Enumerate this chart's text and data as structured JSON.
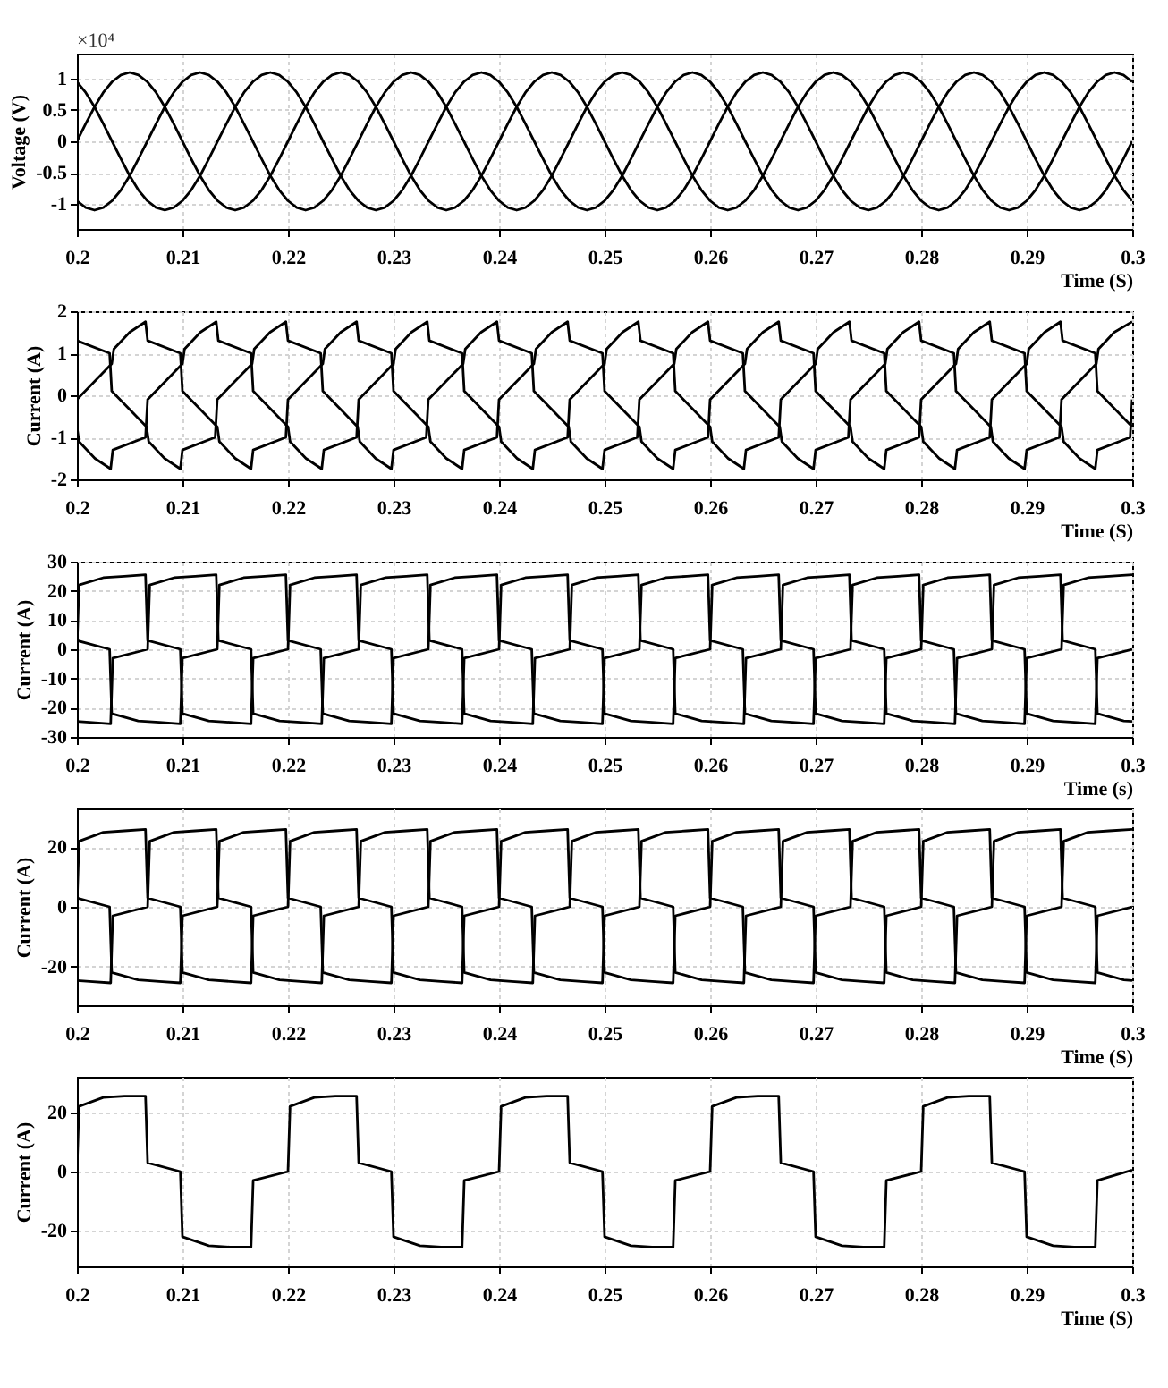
{
  "chart_data": [
    {
      "type": "line",
      "ylabel": "Voltage (V)",
      "xlabel": "Time (S)",
      "annotations": [
        "×10⁴"
      ],
      "xlim": [
        0.2,
        0.3
      ],
      "xticks": [
        0.2,
        0.21,
        0.22,
        0.23,
        0.24,
        0.25,
        0.26,
        0.27,
        0.28,
        0.29,
        0.3
      ],
      "ylim": [
        -1.4,
        1.4
      ],
      "yticks": [
        -1,
        -0.5,
        0,
        0.5,
        1
      ],
      "grid": true,
      "x": [
        0.2,
        0.20083,
        0.20167,
        0.2025,
        0.20333,
        0.20417,
        0.205,
        0.20583,
        0.20667,
        0.2075,
        0.20833,
        0.20917,
        0.21,
        0.21083,
        0.21167,
        0.2125,
        0.21333,
        0.21417,
        0.215,
        0.21583,
        0.21667,
        0.2175,
        0.21833,
        0.21917,
        0.22,
        0.22083,
        0.22167,
        0.2225,
        0.22333,
        0.22417,
        0.225,
        0.22583,
        0.22667,
        0.2275,
        0.22833,
        0.22917,
        0.23,
        0.23083,
        0.23167,
        0.2325,
        0.23333,
        0.23417,
        0.235,
        0.23583,
        0.23667,
        0.2375,
        0.23833,
        0.23917,
        0.24,
        0.24083,
        0.24167,
        0.2425,
        0.24333,
        0.24417,
        0.245,
        0.24583,
        0.24667,
        0.2475,
        0.24833,
        0.24917,
        0.25,
        0.25083,
        0.25167,
        0.2525,
        0.25333,
        0.25417,
        0.255,
        0.25583,
        0.25667,
        0.2575,
        0.25833,
        0.25917,
        0.26,
        0.26083,
        0.26167,
        0.2625,
        0.26333,
        0.26417,
        0.265,
        0.26583,
        0.26667,
        0.2675,
        0.26833,
        0.26917,
        0.27,
        0.27083,
        0.27167,
        0.2725,
        0.27333,
        0.27417,
        0.275,
        0.27583,
        0.27667,
        0.2775,
        0.27833,
        0.27917,
        0.28,
        0.28083,
        0.28167,
        0.2825,
        0.28333,
        0.28417,
        0.285,
        0.28583,
        0.28667,
        0.2875,
        0.28833,
        0.28917,
        0.29,
        0.29083,
        0.29167,
        0.2925,
        0.29333,
        0.29417,
        0.295,
        0.29583,
        0.29667,
        0.2975,
        0.29833,
        0.29917,
        0.3
      ],
      "series": [
        {
          "color": "#000000",
          "values": [
            0,
            0.28,
            0.55,
            0.78,
            0.95,
            1.06,
            1.1,
            1.06,
            0.95,
            0.78,
            0.55,
            0.28,
            0,
            -0.28,
            -0.55,
            -0.78,
            -0.95,
            -1.06,
            -1.1,
            -1.06,
            -0.95,
            -0.78,
            -0.55,
            -0.28,
            0,
            0.28,
            0.55,
            0.78,
            0.95,
            1.06,
            1.1,
            1.06,
            0.95,
            0.78,
            0.55,
            0.28,
            0,
            -0.28,
            -0.55,
            -0.78,
            -0.95,
            -1.06,
            -1.1,
            -1.06,
            -0.95,
            -0.78,
            -0.55,
            -0.28,
            0,
            0.28,
            0.55,
            0.78,
            0.95,
            1.06,
            1.1,
            1.06,
            0.95,
            0.78,
            0.55,
            0.28,
            0,
            -0.28,
            -0.55,
            -0.78,
            -0.95,
            -1.06,
            -1.1,
            -1.06,
            -0.95,
            -0.78,
            -0.55,
            -0.28,
            0,
            0.28,
            0.55,
            0.78,
            0.95,
            1.06,
            1.1,
            1.06,
            0.95,
            0.78,
            0.55,
            0.28,
            0,
            -0.28,
            -0.55,
            -0.78,
            -0.95,
            -1.06,
            -1.1,
            -1.06,
            -0.95,
            -0.78,
            -0.55,
            -0.28,
            0,
            0.28,
            0.55,
            0.78,
            0.95,
            1.06,
            1.1,
            1.06,
            0.95,
            0.78,
            0.55,
            0.28,
            0,
            -0.28,
            -0.55,
            -0.78,
            -0.95,
            -1.06,
            -1.1,
            -1.06,
            -0.95,
            -0.78,
            -0.55,
            -0.28,
            0
          ]
        },
        {
          "color": "#000000",
          "values": [
            -0.95,
            -1.06,
            -1.1,
            -1.06,
            -0.95,
            -0.78,
            -0.55,
            -0.28,
            0,
            0.28,
            0.55,
            0.78,
            0.95,
            1.06,
            1.1,
            1.06,
            0.95,
            0.78,
            0.55,
            0.28,
            0,
            -0.28,
            -0.55,
            -0.78,
            -0.95,
            -1.06,
            -1.1,
            -1.06,
            -0.95,
            -0.78,
            -0.55,
            -0.28,
            0,
            0.28,
            0.55,
            0.78,
            0.95,
            1.06,
            1.1,
            1.06,
            0.95,
            0.78,
            0.55,
            0.28,
            0,
            -0.28,
            -0.55,
            -0.78,
            -0.95,
            -1.06,
            -1.1,
            -1.06,
            -0.95,
            -0.78,
            -0.55,
            -0.28,
            0,
            0.28,
            0.55,
            0.78,
            0.95,
            1.06,
            1.1,
            1.06,
            0.95,
            0.78,
            0.55,
            0.28,
            0,
            -0.28,
            -0.55,
            -0.78,
            -0.95,
            -1.06,
            -1.1,
            -1.06,
            -0.95,
            -0.78,
            -0.55,
            -0.28,
            0,
            0.28,
            0.55,
            0.78,
            0.95,
            1.06,
            1.1,
            1.06,
            0.95,
            0.78,
            0.55,
            0.28,
            0,
            -0.28,
            -0.55,
            -0.78,
            -0.95,
            -1.06,
            -1.1,
            -1.06,
            -0.95,
            -0.78,
            -0.55,
            -0.28,
            0,
            0.28,
            0.55,
            0.78,
            0.95,
            1.06,
            1.1,
            1.06,
            0.95,
            0.78,
            0.55,
            0.28,
            0,
            -0.28,
            -0.55,
            -0.78,
            -0.95
          ]
        },
        {
          "color": "#000000",
          "values": [
            0.95,
            0.78,
            0.55,
            0.28,
            0,
            -0.28,
            -0.55,
            -0.78,
            -0.95,
            -1.06,
            -1.1,
            -1.06,
            -0.95,
            -0.78,
            -0.55,
            -0.28,
            0,
            0.28,
            0.55,
            0.78,
            0.95,
            1.06,
            1.1,
            1.06,
            0.95,
            0.78,
            0.55,
            0.28,
            0,
            -0.28,
            -0.55,
            -0.78,
            -0.95,
            -1.06,
            -1.1,
            -1.06,
            -0.95,
            -0.78,
            -0.55,
            -0.28,
            0,
            0.28,
            0.55,
            0.78,
            0.95,
            1.06,
            1.1,
            1.06,
            0.95,
            0.78,
            0.55,
            0.28,
            0,
            -0.28,
            -0.55,
            -0.78,
            -0.95,
            -1.06,
            -1.1,
            -1.06,
            -0.95,
            -0.78,
            -0.55,
            -0.28,
            0,
            0.28,
            0.55,
            0.78,
            0.95,
            1.06,
            1.1,
            1.06,
            0.95,
            0.78,
            0.55,
            0.28,
            0,
            -0.28,
            -0.55,
            -0.78,
            -0.95,
            -1.06,
            -1.1,
            -1.06,
            -0.95,
            -0.78,
            -0.55,
            -0.28,
            0,
            0.28,
            0.55,
            0.78,
            0.95,
            1.06,
            1.1,
            1.06,
            0.95,
            0.78,
            0.55,
            0.28,
            0,
            -0.28,
            -0.55,
            -0.78,
            -0.95,
            -1.06,
            -1.1,
            -1.06,
            -0.95,
            -0.78,
            -0.55,
            -0.28,
            0,
            0.28,
            0.55,
            0.78,
            0.95,
            1.06,
            1.1,
            1.06,
            0.95
          ]
        }
      ]
    },
    {
      "type": "line",
      "ylabel": "Current (A)",
      "xlabel": "Time (S)",
      "xlim": [
        0.2,
        0.3
      ],
      "xticks": [
        0.2,
        0.21,
        0.22,
        0.23,
        0.24,
        0.25,
        0.26,
        0.27,
        0.28,
        0.29,
        0.3
      ],
      "ylim": [
        -2,
        2
      ],
      "yticks": [
        -2,
        -1,
        0,
        1,
        2
      ],
      "grid": true,
      "series": [
        {
          "color": "#000000",
          "x": [
            0.2,
            0.2033,
            0.2035,
            0.205,
            0.2065,
            0.2067,
            0.2098,
            0.21,
            0.2133,
            0.2135,
            0.215,
            0.2165,
            0.2167,
            0.2198,
            0.22,
            0.2233,
            0.2235,
            0.225,
            0.2265,
            0.2267,
            0.2298,
            0.23,
            0.2333,
            0.2335,
            0.235,
            0.2365,
            0.2367,
            0.2398,
            0.24,
            0.2433,
            0.2435,
            0.245,
            0.2465,
            0.2467,
            0.2498,
            0.25,
            0.2533,
            0.2535,
            0.255,
            0.2565,
            0.2567,
            0.2598,
            0.26,
            0.2633,
            0.2635,
            0.265,
            0.2665,
            0.2667,
            0.2698,
            0.27,
            0.2733,
            0.2735,
            0.275,
            0.2765,
            0.2767,
            0.2798,
            0.28,
            0.2833,
            0.2835,
            0.285,
            0.2865,
            0.2867,
            0.2898,
            0.29,
            0.2933,
            0.2935,
            0.295,
            0.2965,
            0.2967,
            0.2998,
            0.3
          ],
          "values": [
            -0.1,
            0.75,
            1.1,
            1.5,
            1.75,
            1.3,
            1.0,
            0.1,
            -0.75,
            -1.1,
            -1.5,
            -1.75,
            -1.3,
            -1.0,
            -0.1,
            0.75,
            1.1,
            1.5,
            1.75,
            1.3,
            1.0,
            0.1,
            -0.75,
            -1.1,
            -1.5,
            -1.75,
            -1.3,
            -1.0,
            -0.1,
            0.75,
            1.1,
            1.5,
            1.75,
            1.3,
            1.0,
            0.1,
            -0.75,
            -1.1,
            -1.5,
            -1.75,
            -1.3,
            -1.0,
            -0.1,
            0.75,
            1.1,
            1.5,
            1.75,
            1.3,
            1.0,
            0.1,
            -0.75,
            -1.1,
            -1.5,
            -1.75,
            -1.3,
            -1.0,
            -0.1,
            0.75,
            1.1,
            1.5,
            1.75,
            1.3,
            1.0,
            0.1,
            -0.75,
            -1.1,
            -1.5,
            -1.75,
            -1.3,
            -1.0,
            -0.1
          ]
        },
        {
          "color": "#000000",
          "x": [
            0.2,
            0.2002,
            0.2017,
            0.2032,
            0.2034,
            0.2065,
            0.2067,
            0.21,
            0.2102,
            0.2117,
            0.2132,
            0.2134,
            0.2165,
            0.2167,
            0.22,
            0.2202,
            0.2217,
            0.2232,
            0.2234,
            0.2265,
            0.2267,
            0.23,
            0.2302,
            0.2317,
            0.2332,
            0.2334,
            0.2365,
            0.2367,
            0.24,
            0.2402,
            0.2417,
            0.2432,
            0.2434,
            0.2465,
            0.2467,
            0.25,
            0.2502,
            0.2517,
            0.2532,
            0.2534,
            0.2565,
            0.2567,
            0.26,
            0.2602,
            0.2617,
            0.2632,
            0.2634,
            0.2665,
            0.2667,
            0.27,
            0.2702,
            0.2717,
            0.2732,
            0.2734,
            0.2765,
            0.2767,
            0.28,
            0.2802,
            0.2817,
            0.2832,
            0.2834,
            0.2865,
            0.2867,
            0.29,
            0.2902,
            0.2917,
            0.2932,
            0.2934,
            0.2965,
            0.2967,
            0.3
          ],
          "values": [
            -0.75,
            -1.1,
            -1.5,
            -1.75,
            -1.3,
            -1.0,
            -0.1,
            0.75,
            1.1,
            1.5,
            1.75,
            1.3,
            1.0,
            0.1,
            -0.75,
            -1.1,
            -1.5,
            -1.75,
            -1.3,
            -1.0,
            -0.1,
            0.75,
            1.1,
            1.5,
            1.75,
            1.3,
            1.0,
            0.1,
            -0.75,
            -1.1,
            -1.5,
            -1.75,
            -1.3,
            -1.0,
            -0.1,
            0.75,
            1.1,
            1.5,
            1.75,
            1.3,
            1.0,
            0.1,
            -0.75,
            -1.1,
            -1.5,
            -1.75,
            -1.3,
            -1.0,
            -0.1,
            0.75,
            1.1,
            1.5,
            1.75,
            1.3,
            1.0,
            0.1,
            -0.75,
            -1.1,
            -1.5,
            -1.75,
            -1.3,
            -1.0,
            -0.1,
            0.75,
            1.1,
            1.5,
            1.75,
            1.3,
            1.0,
            0.1,
            -0.75
          ]
        },
        {
          "color": "#000000",
          "x": [
            0.2,
            0.2031,
            0.2033,
            0.2066,
            0.2068,
            0.2083,
            0.2098,
            0.21,
            0.2131,
            0.2133,
            0.2166,
            0.2168,
            0.2183,
            0.2198,
            0.22,
            0.2231,
            0.2233,
            0.2266,
            0.2268,
            0.2283,
            0.2298,
            0.23,
            0.2331,
            0.2333,
            0.2366,
            0.2368,
            0.2383,
            0.2398,
            0.24,
            0.2431,
            0.2433,
            0.2466,
            0.2468,
            0.2483,
            0.2498,
            0.25,
            0.2531,
            0.2533,
            0.2566,
            0.2568,
            0.2583,
            0.2598,
            0.26,
            0.2631,
            0.2633,
            0.2666,
            0.2668,
            0.2683,
            0.2698,
            0.27,
            0.2731,
            0.2733,
            0.2766,
            0.2768,
            0.2783,
            0.2798,
            0.28,
            0.2831,
            0.2833,
            0.2866,
            0.2868,
            0.2883,
            0.2898,
            0.29,
            0.2931,
            0.2933,
            0.2966,
            0.2968,
            0.2983,
            0.3
          ],
          "values": [
            1.3,
            1.0,
            0.1,
            -0.75,
            -1.1,
            -1.5,
            -1.75,
            -1.3,
            -1.0,
            -0.1,
            0.75,
            1.1,
            1.5,
            1.75,
            1.3,
            1.0,
            0.1,
            -0.75,
            -1.1,
            -1.5,
            -1.75,
            -1.3,
            -1.0,
            -0.1,
            0.75,
            1.1,
            1.5,
            1.75,
            1.3,
            1.0,
            0.1,
            -0.75,
            -1.1,
            -1.5,
            -1.75,
            -1.3,
            -1.0,
            -0.1,
            0.75,
            1.1,
            1.5,
            1.75,
            1.3,
            1.0,
            0.1,
            -0.75,
            -1.1,
            -1.5,
            -1.75,
            -1.3,
            -1.0,
            -0.1,
            0.75,
            1.1,
            1.5,
            1.75,
            1.3,
            1.0,
            0.1,
            -0.75,
            -1.1,
            -1.5,
            -1.75,
            -1.3,
            -1.0,
            -0.1,
            0.75,
            1.1,
            1.5,
            1.75
          ]
        }
      ]
    },
    {
      "type": "line",
      "ylabel": "Current (A)",
      "xlabel": "Time (s)",
      "xlim": [
        0.2,
        0.3
      ],
      "xticks": [
        0.2,
        0.21,
        0.22,
        0.23,
        0.24,
        0.25,
        0.26,
        0.27,
        0.28,
        0.29,
        0.3
      ],
      "ylim": [
        -30,
        30
      ],
      "yticks": [
        -30,
        -20,
        -10,
        0,
        10,
        20,
        30
      ],
      "grid": true,
      "series": [
        {
          "color": "#000000",
          "x": [
            0.2,
            0.2002,
            0.2025,
            0.2045,
            0.2065,
            0.2067,
            0.2098,
            0.21,
            0.2125,
            0.2145,
            0.2165,
            0.2167,
            0.22,
            0.2202,
            0.2225,
            0.2245,
            0.2265,
            0.2267,
            0.2298,
            0.23,
            0.2325,
            0.2345,
            0.2365,
            0.2367,
            0.24,
            0.2402,
            0.2425,
            0.2445,
            0.2465,
            0.2467,
            0.2498,
            0.25,
            0.2525,
            0.2545,
            0.2565,
            0.2567,
            0.26,
            0.2602,
            0.2625,
            0.2645,
            0.2665,
            0.2667,
            0.2698,
            0.27,
            0.2725,
            0.2745,
            0.2765,
            0.2767,
            0.28,
            0.2802,
            0.2825,
            0.2845,
            0.2865,
            0.2867,
            0.2898,
            0.29,
            0.2925,
            0.2945,
            0.2965,
            0.2967,
            0.3
          ],
          "values": [
            0,
            22,
            24.5,
            25,
            25.5,
            3,
            0,
            -22,
            -24.5,
            -25,
            -25.5,
            -3,
            0,
            22,
            24.5,
            25,
            25.5,
            3,
            0,
            -22,
            -24.5,
            -25,
            -25.5,
            -3,
            0,
            22,
            24.5,
            25,
            25.5,
            3,
            0,
            -22,
            -24.5,
            -25,
            -25.5,
            -3,
            0,
            22,
            24.5,
            25,
            25.5,
            3,
            0,
            -22,
            -24.5,
            -25,
            -25.5,
            -3,
            0,
            22,
            24.5,
            25,
            25.5,
            3,
            0,
            -22,
            -24.5,
            -25,
            -25.5,
            -3,
            0
          ]
        },
        {
          "color": "#000000",
          "x": [
            0.2,
            0.2012,
            0.2032,
            0.2034,
            0.2067,
            0.2069,
            0.2092,
            0.2112,
            0.2132,
            0.2134,
            0.2165,
            0.2167,
            0.2192,
            0.2212,
            0.2232,
            0.2234,
            0.2267,
            0.2269,
            0.2292,
            0.2312,
            0.2332,
            0.2334,
            0.2365,
            0.2367,
            0.2392,
            0.2412,
            0.2432,
            0.2434,
            0.2467,
            0.2469,
            0.2492,
            0.2512,
            0.2532,
            0.2534,
            0.2565,
            0.2567,
            0.2592,
            0.2612,
            0.2632,
            0.2634,
            0.2667,
            0.2669,
            0.2692,
            0.2712,
            0.2732,
            0.2734,
            0.2765,
            0.2767,
            0.2792,
            0.2812,
            0.2832,
            0.2834,
            0.2867,
            0.2869,
            0.2892,
            0.2912,
            0.2932,
            0.2934,
            0.2965,
            0.2967,
            0.2992,
            0.3
          ],
          "values": [
            -24.7,
            -25,
            -25.5,
            -3,
            0,
            22,
            24.5,
            25,
            25.5,
            3,
            0,
            -22,
            -24.5,
            -25,
            -25.5,
            -3,
            0,
            22,
            24.5,
            25,
            25.5,
            3,
            0,
            -22,
            -24.5,
            -25,
            -25.5,
            -3,
            0,
            22,
            24.5,
            25,
            25.5,
            3,
            0,
            -22,
            -24.5,
            -25,
            -25.5,
            -3,
            0,
            22,
            24.5,
            25,
            25.5,
            3,
            0,
            -22,
            -24.5,
            -25,
            -25.5,
            -3,
            0,
            22,
            24.5,
            25,
            25.5,
            3,
            0,
            -22,
            -24.5,
            -24.7
          ]
        },
        {
          "color": "#000000",
          "x": [
            0.2,
            0.2031,
            0.2033,
            0.2058,
            0.2078,
            0.2098,
            0.21,
            0.2133,
            0.2135,
            0.2158,
            0.2178,
            0.2198,
            0.22,
            0.2231,
            0.2233,
            0.2258,
            0.2278,
            0.2298,
            0.23,
            0.2333,
            0.2335,
            0.2358,
            0.2378,
            0.2398,
            0.24,
            0.2431,
            0.2433,
            0.2458,
            0.2478,
            0.2498,
            0.25,
            0.2533,
            0.2535,
            0.2558,
            0.2578,
            0.2598,
            0.26,
            0.2631,
            0.2633,
            0.2658,
            0.2678,
            0.2698,
            0.27,
            0.2733,
            0.2735,
            0.2758,
            0.2778,
            0.2798,
            0.28,
            0.2831,
            0.2833,
            0.2858,
            0.2878,
            0.2898,
            0.29,
            0.2933,
            0.2935,
            0.2958,
            0.2978,
            0.3
          ],
          "values": [
            3,
            0,
            -22,
            -24.5,
            -25,
            -25.5,
            -3,
            0,
            22,
            24.5,
            25,
            25.5,
            3,
            0,
            -22,
            -24.5,
            -25,
            -25.5,
            -3,
            0,
            22,
            24.5,
            25,
            25.5,
            3,
            0,
            -22,
            -24.5,
            -25,
            -25.5,
            -3,
            0,
            22,
            24.5,
            25,
            25.5,
            3,
            0,
            -22,
            -24.5,
            -25,
            -25.5,
            -3,
            0,
            22,
            24.5,
            25,
            25.5,
            3,
            0,
            -22,
            -24.5,
            -25,
            -25.5,
            -3,
            0,
            22,
            24.5,
            25,
            25.5
          ]
        }
      ]
    },
    {
      "type": "line",
      "ylabel": "Current (A)",
      "xlabel": "Time (S)",
      "xlim": [
        0.2,
        0.3
      ],
      "xticks": [
        0.2,
        0.21,
        0.22,
        0.23,
        0.24,
        0.25,
        0.26,
        0.27,
        0.28,
        0.29,
        0.3
      ],
      "ylim": [
        -33,
        33
      ],
      "yticks": [
        -20,
        0,
        20
      ],
      "grid": true,
      "series": [
        {
          "color": "#000000",
          "x": [
            0.2,
            0.2002,
            0.2025,
            0.2045,
            0.2065,
            0.2067,
            0.2098,
            0.21,
            0.2125,
            0.2145,
            0.2165,
            0.2167,
            0.22,
            0.2202,
            0.2225,
            0.2245,
            0.2265,
            0.2267,
            0.2298,
            0.23,
            0.2325,
            0.2345,
            0.2365,
            0.2367,
            0.24,
            0.2402,
            0.2425,
            0.2445,
            0.2465,
            0.2467,
            0.2498,
            0.25,
            0.2525,
            0.2545,
            0.2565,
            0.2567,
            0.26,
            0.2602,
            0.2625,
            0.2645,
            0.2665,
            0.2667,
            0.2698,
            0.27,
            0.2725,
            0.2745,
            0.2765,
            0.2767,
            0.28,
            0.2802,
            0.2825,
            0.2845,
            0.2865,
            0.2867,
            0.2898,
            0.29,
            0.2925,
            0.2945,
            0.2965,
            0.2967,
            0.3
          ],
          "values": [
            0,
            22,
            25,
            25.5,
            26,
            3,
            0,
            -22,
            -24.5,
            -25,
            -25.5,
            -3,
            0,
            22,
            25,
            25.5,
            26,
            3,
            0,
            -22,
            -24.5,
            -25,
            -25.5,
            -3,
            0,
            22,
            25,
            25.5,
            26,
            3,
            0,
            -22,
            -24.5,
            -25,
            -25.5,
            -3,
            0,
            22,
            25,
            25.5,
            26,
            3,
            0,
            -22,
            -24.5,
            -25,
            -25.5,
            -3,
            0,
            22,
            25,
            25.5,
            26,
            3,
            0,
            -22,
            -24.5,
            -25,
            -25.5,
            -3,
            0
          ]
        },
        {
          "color": "#000000",
          "x": [
            0.2,
            0.2012,
            0.2032,
            0.2034,
            0.2067,
            0.2069,
            0.2092,
            0.2112,
            0.2132,
            0.2134,
            0.2165,
            0.2167,
            0.2192,
            0.2212,
            0.2232,
            0.2234,
            0.2267,
            0.2269,
            0.2292,
            0.2312,
            0.2332,
            0.2334,
            0.2365,
            0.2367,
            0.2392,
            0.2412,
            0.2432,
            0.2434,
            0.2467,
            0.2469,
            0.2492,
            0.2512,
            0.2532,
            0.2534,
            0.2565,
            0.2567,
            0.2592,
            0.2612,
            0.2632,
            0.2634,
            0.2667,
            0.2669,
            0.2692,
            0.2712,
            0.2732,
            0.2734,
            0.2765,
            0.2767,
            0.2792,
            0.2812,
            0.2832,
            0.2834,
            0.2867,
            0.2869,
            0.2892,
            0.2912,
            0.2932,
            0.2934,
            0.2965,
            0.2967,
            0.2992,
            0.3
          ],
          "values": [
            -24.7,
            -25,
            -25.5,
            -3,
            0,
            22,
            25,
            25.5,
            26,
            3,
            0,
            -22,
            -24.5,
            -25,
            -25.5,
            -3,
            0,
            22,
            25,
            25.5,
            26,
            3,
            0,
            -22,
            -24.5,
            -25,
            -25.5,
            -3,
            0,
            22,
            25,
            25.5,
            26,
            3,
            0,
            -22,
            -24.5,
            -25,
            -25.5,
            -3,
            0,
            22,
            25,
            25.5,
            26,
            3,
            0,
            -22,
            -24.5,
            -25,
            -25.5,
            -3,
            0,
            22,
            25,
            25.5,
            26,
            3,
            0,
            -22,
            -24.5,
            -24.7
          ]
        },
        {
          "color": "#000000",
          "x": [
            0.2,
            0.2031,
            0.2033,
            0.2058,
            0.2078,
            0.2098,
            0.21,
            0.2133,
            0.2135,
            0.2158,
            0.2178,
            0.2198,
            0.22,
            0.2231,
            0.2233,
            0.2258,
            0.2278,
            0.2298,
            0.23,
            0.2333,
            0.2335,
            0.2358,
            0.2378,
            0.2398,
            0.24,
            0.2431,
            0.2433,
            0.2458,
            0.2478,
            0.2498,
            0.25,
            0.2533,
            0.2535,
            0.2558,
            0.2578,
            0.2598,
            0.26,
            0.2631,
            0.2633,
            0.2658,
            0.2678,
            0.2698,
            0.27,
            0.2733,
            0.2735,
            0.2758,
            0.2778,
            0.2798,
            0.28,
            0.2831,
            0.2833,
            0.2858,
            0.2878,
            0.2898,
            0.29,
            0.2933,
            0.2935,
            0.2958,
            0.2978,
            0.3
          ],
          "values": [
            3,
            0,
            -22,
            -24.5,
            -25,
            -25.5,
            -3,
            0,
            22,
            25,
            25.5,
            26,
            3,
            0,
            -22,
            -24.5,
            -25,
            -25.5,
            -3,
            0,
            22,
            25,
            25.5,
            26,
            3,
            0,
            -22,
            -24.5,
            -25,
            -25.5,
            -3,
            0,
            22,
            25,
            25.5,
            26,
            3,
            0,
            -22,
            -24.5,
            -25,
            -25.5,
            -3,
            0,
            22,
            25,
            25.5,
            26,
            3,
            0,
            -22,
            -24.5,
            -25,
            -25.5,
            -3,
            0,
            22,
            25,
            25.5,
            26
          ]
        }
      ]
    },
    {
      "type": "line",
      "ylabel": "Current (A)",
      "xlabel": "Time (S)",
      "xlim": [
        0.2,
        0.3
      ],
      "xticks": [
        0.2,
        0.21,
        0.22,
        0.23,
        0.24,
        0.25,
        0.26,
        0.27,
        0.28,
        0.29,
        0.3
      ],
      "ylim": [
        -32,
        32
      ],
      "yticks": [
        -20,
        0,
        20
      ],
      "grid": true,
      "series": [
        {
          "color": "#000000",
          "x": [
            0.2,
            0.2002,
            0.2025,
            0.2045,
            0.2065,
            0.2067,
            0.2098,
            0.21,
            0.2125,
            0.2145,
            0.2165,
            0.2167,
            0.22,
            0.2202,
            0.2225,
            0.2245,
            0.2265,
            0.2267,
            0.2298,
            0.23,
            0.2325,
            0.2345,
            0.2365,
            0.2367,
            0.24,
            0.2402,
            0.2425,
            0.2445,
            0.2465,
            0.2467,
            0.2498,
            0.25,
            0.2525,
            0.2545,
            0.2565,
            0.2567,
            0.26,
            0.2602,
            0.2625,
            0.2645,
            0.2665,
            0.2667,
            0.2698,
            0.27,
            0.2725,
            0.2745,
            0.2765,
            0.2767,
            0.28,
            0.2802,
            0.2825,
            0.2845,
            0.2865,
            0.2867,
            0.2898,
            0.29,
            0.2925,
            0.2945,
            0.2965,
            0.2967,
            0.3
          ],
          "values": [
            0,
            22,
            25,
            25.5,
            25.5,
            3,
            0,
            -22,
            -25,
            -25.5,
            -25.5,
            -3,
            0,
            22,
            25,
            25.5,
            25.5,
            3,
            0,
            -22,
            -25,
            -25.5,
            -25.5,
            -3,
            0,
            22,
            25,
            25.5,
            25.5,
            3,
            0,
            -22,
            -25,
            -25.5,
            -25.5,
            -3,
            0,
            22,
            25,
            25.5,
            25.5,
            3,
            0,
            -22,
            -25,
            -25.5,
            -25.5,
            -3,
            0,
            22,
            25,
            25.5,
            25.5,
            3,
            0,
            -22,
            -25,
            -25.5,
            -25.5,
            -3,
            0.5
          ]
        }
      ]
    }
  ]
}
